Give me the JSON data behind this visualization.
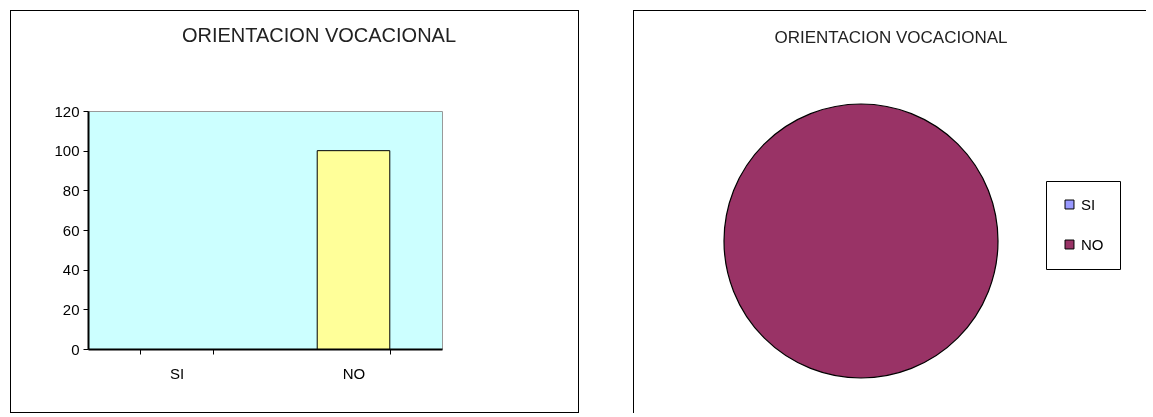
{
  "chart_data": [
    {
      "type": "bar",
      "title": "ORIENTACION VOCACIONAL",
      "categories": [
        "SI",
        "NO"
      ],
      "values": [
        0,
        100
      ],
      "color": "#ffff99",
      "ylim": [
        0,
        120
      ],
      "yticks": [
        0,
        20,
        40,
        60,
        80,
        100,
        120
      ]
    },
    {
      "type": "pie",
      "title": "ORIENTACION VOCACIONAL",
      "categories": [
        "SI",
        "NO"
      ],
      "values": [
        0,
        100
      ],
      "colors": [
        "#9999ff",
        "#993366"
      ],
      "legend": "right"
    }
  ]
}
